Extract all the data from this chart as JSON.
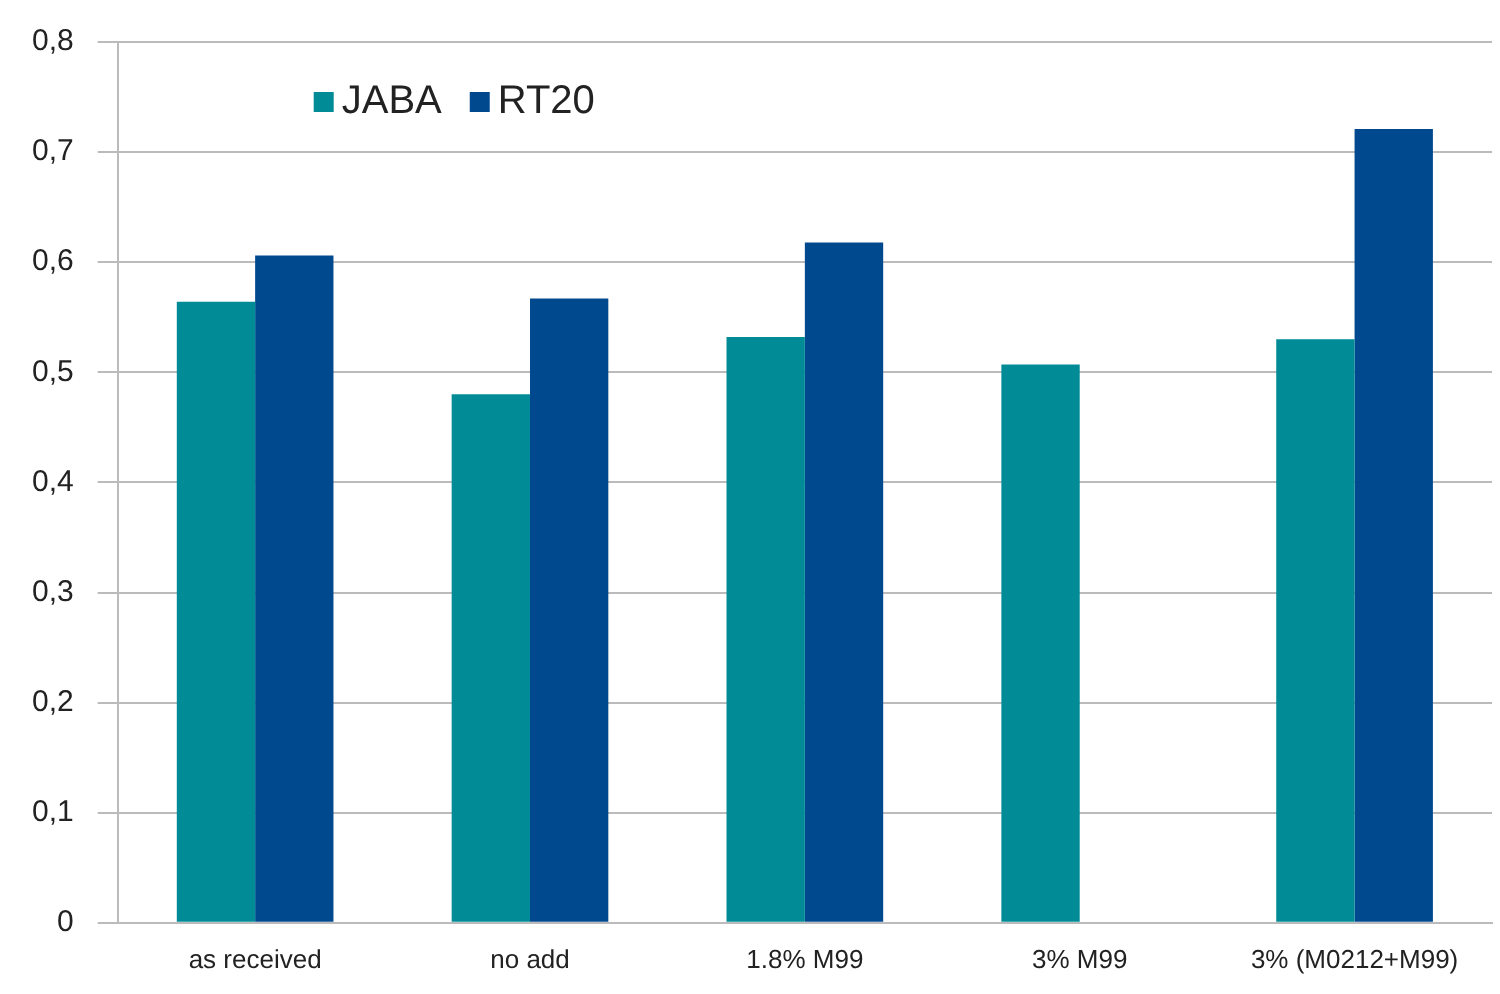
{
  "chart_data": {
    "type": "bar",
    "categories": [
      "as received",
      "no add",
      "1.8% M99",
      "3% M99",
      "3% (M0212+M99)"
    ],
    "series": [
      {
        "name": "JABA",
        "color": "#008b96",
        "values": [
          0.564,
          0.48,
          0.532,
          0.507,
          0.53
        ]
      },
      {
        "name": "RT20",
        "color": "#00498f",
        "values": [
          0.606,
          0.567,
          0.618,
          null,
          0.721
        ]
      }
    ],
    "ylim": [
      0,
      0.8
    ],
    "yticks": [
      {
        "value": 0,
        "label": "0"
      },
      {
        "value": 0.1,
        "label": "0,1"
      },
      {
        "value": 0.2,
        "label": "0,2"
      },
      {
        "value": 0.3,
        "label": "0,3"
      },
      {
        "value": 0.4,
        "label": "0,4"
      },
      {
        "value": 0.5,
        "label": "0,5"
      },
      {
        "value": 0.6,
        "label": "0,6"
      },
      {
        "value": 0.7,
        "label": "0,7"
      },
      {
        "value": 0.8,
        "label": "0,8"
      }
    ],
    "grid": "y",
    "legend": "top left"
  }
}
